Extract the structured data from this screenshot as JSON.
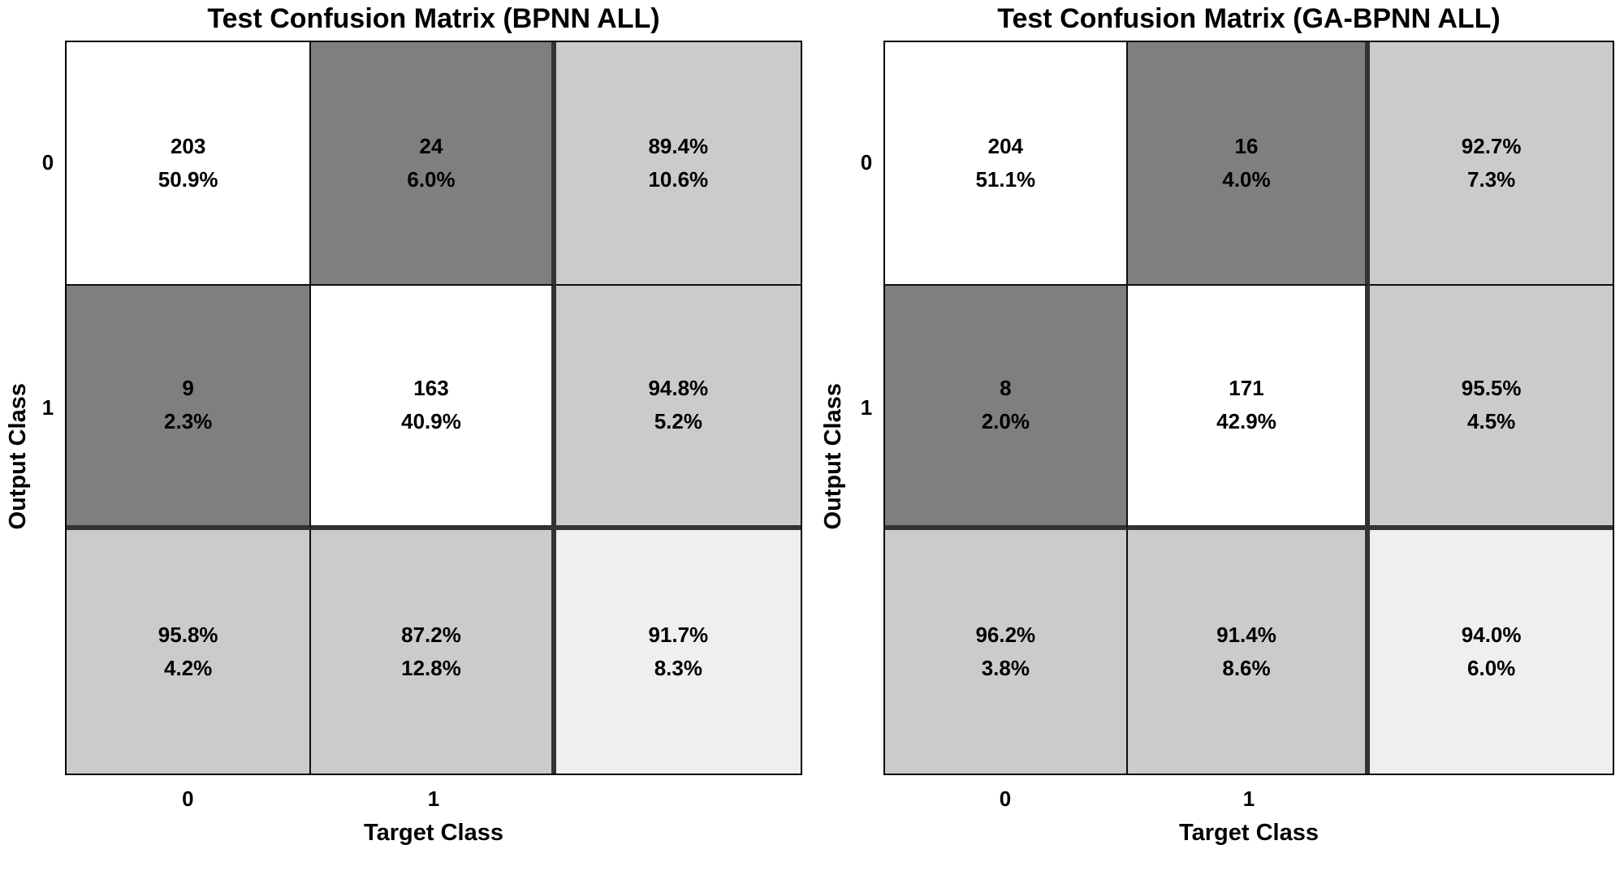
{
  "figures": [
    {
      "title": "Test Confusion Matrix (BPNN ALL)",
      "y_axis_label": "Output Class",
      "x_axis_label": "Target Class",
      "y_ticks": [
        "0",
        "1"
      ],
      "x_ticks": [
        "0",
        "1"
      ],
      "cells": [
        {
          "line1": "203",
          "line2": "50.9%"
        },
        {
          "line1": "24",
          "line2": "6.0%"
        },
        {
          "line1": "89.4%",
          "line2": "10.6%"
        },
        {
          "line1": "9",
          "line2": "2.3%"
        },
        {
          "line1": "163",
          "line2": "40.9%"
        },
        {
          "line1": "94.8%",
          "line2": "5.2%"
        },
        {
          "line1": "95.8%",
          "line2": "4.2%"
        },
        {
          "line1": "87.2%",
          "line2": "12.8%"
        },
        {
          "line1": "91.7%",
          "line2": "8.3%"
        }
      ]
    },
    {
      "title": "Test Confusion Matrix (GA-BPNN ALL)",
      "y_axis_label": "Output Class",
      "x_axis_label": "Target Class",
      "y_ticks": [
        "0",
        "1"
      ],
      "x_ticks": [
        "0",
        "1"
      ],
      "cells": [
        {
          "line1": "204",
          "line2": "51.1%"
        },
        {
          "line1": "16",
          "line2": "4.0%"
        },
        {
          "line1": "92.7%",
          "line2": "7.3%"
        },
        {
          "line1": "8",
          "line2": "2.0%"
        },
        {
          "line1": "171",
          "line2": "42.9%"
        },
        {
          "line1": "95.5%",
          "line2": "4.5%"
        },
        {
          "line1": "96.2%",
          "line2": "3.8%"
        },
        {
          "line1": "91.4%",
          "line2": "8.6%"
        },
        {
          "line1": "94.0%",
          "line2": "6.0%"
        }
      ]
    }
  ],
  "colors": {
    "correct_cell": "#ffffff",
    "incorrect_cell": "#7f7f7f",
    "summary_cell": "#cbcbcb",
    "total_cell": "#efefef",
    "grid_line": "#0f0f0f",
    "heavy_separator_line": "#333333",
    "text": "#000000"
  },
  "chart_data": [
    {
      "type": "heatmap",
      "title": "Test Confusion Matrix (BPNN ALL)",
      "xlabel": "Target Class",
      "ylabel": "Output Class",
      "classes": [
        "0",
        "1"
      ],
      "matrix_counts": [
        [
          203,
          24
        ],
        [
          9,
          163
        ]
      ],
      "matrix_percent_of_total": [
        [
          50.9,
          6.0
        ],
        [
          2.3,
          40.9
        ]
      ],
      "row_summary_percent_correct_error": [
        [
          89.4,
          10.6
        ],
        [
          94.8,
          5.2
        ]
      ],
      "column_summary_percent_correct_error": [
        [
          95.8,
          4.2
        ],
        [
          87.2,
          12.8
        ]
      ],
      "overall_accuracy_percent": 91.7,
      "overall_error_percent": 8.3,
      "legend_position": "none",
      "grid": true
    },
    {
      "type": "heatmap",
      "title": "Test Confusion Matrix (GA-BPNN ALL)",
      "xlabel": "Target Class",
      "ylabel": "Output Class",
      "classes": [
        "0",
        "1"
      ],
      "matrix_counts": [
        [
          204,
          16
        ],
        [
          8,
          171
        ]
      ],
      "matrix_percent_of_total": [
        [
          51.1,
          4.0
        ],
        [
          2.0,
          42.9
        ]
      ],
      "row_summary_percent_correct_error": [
        [
          92.7,
          7.3
        ],
        [
          95.5,
          4.5
        ]
      ],
      "column_summary_percent_correct_error": [
        [
          96.2,
          3.8
        ],
        [
          91.4,
          8.6
        ]
      ],
      "overall_accuracy_percent": 94.0,
      "overall_error_percent": 6.0,
      "legend_position": "none",
      "grid": true
    }
  ]
}
